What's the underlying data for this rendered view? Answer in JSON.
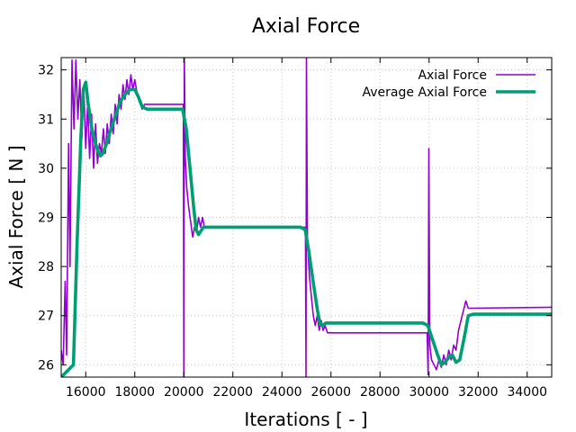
{
  "chart_data": {
    "type": "line",
    "title": "Axial Force",
    "xlabel": "Iterations [ - ]",
    "ylabel": "Axial Force [ N ]",
    "xlim": [
      15000,
      35000
    ],
    "ylim": [
      25.75,
      32.25
    ],
    "x_ticks": [
      16000,
      18000,
      20000,
      22000,
      24000,
      26000,
      28000,
      30000,
      32000,
      34000
    ],
    "y_ticks": [
      26,
      27,
      28,
      29,
      30,
      31,
      32
    ],
    "grid": true,
    "legend_position": "top-right",
    "series": [
      {
        "name": "Axial Force",
        "color": "#9400d3",
        "points": [
          [
            15000,
            26.3
          ],
          [
            15080,
            26.0
          ],
          [
            15160,
            27.7
          ],
          [
            15220,
            26.2
          ],
          [
            15300,
            30.5
          ],
          [
            15360,
            28.0
          ],
          [
            15440,
            32.2
          ],
          [
            15520,
            30.8
          ],
          [
            15600,
            32.2
          ],
          [
            15680,
            31.0
          ],
          [
            15760,
            31.8
          ],
          [
            15840,
            30.6
          ],
          [
            15920,
            31.6
          ],
          [
            16000,
            30.4
          ],
          [
            16080,
            31.3
          ],
          [
            16160,
            30.2
          ],
          [
            16240,
            31.1
          ],
          [
            16320,
            30.0
          ],
          [
            16400,
            30.9
          ],
          [
            16480,
            30.1
          ],
          [
            16560,
            30.5
          ],
          [
            16640,
            30.3
          ],
          [
            16720,
            30.8
          ],
          [
            16800,
            30.3
          ],
          [
            16880,
            30.9
          ],
          [
            16960,
            30.5
          ],
          [
            17040,
            31.1
          ],
          [
            17120,
            30.7
          ],
          [
            17200,
            31.3
          ],
          [
            17280,
            30.9
          ],
          [
            17360,
            31.5
          ],
          [
            17440,
            31.2
          ],
          [
            17520,
            31.7
          ],
          [
            17600,
            31.4
          ],
          [
            17680,
            31.8
          ],
          [
            17760,
            31.5
          ],
          [
            17840,
            31.9
          ],
          [
            17920,
            31.6
          ],
          [
            18000,
            31.8
          ],
          [
            18100,
            31.5
          ],
          [
            18200,
            31.4
          ],
          [
            18300,
            31.2
          ],
          [
            18400,
            31.3
          ],
          [
            19800,
            31.3
          ],
          [
            19980,
            31.3
          ],
          [
            20000,
            25.75
          ],
          [
            20020,
            32.25
          ],
          [
            20060,
            30.2
          ],
          [
            20120,
            29.6
          ],
          [
            20200,
            29.2
          ],
          [
            20280,
            28.9
          ],
          [
            20360,
            28.6
          ],
          [
            20440,
            28.8
          ],
          [
            20520,
            28.7
          ],
          [
            20600,
            29.0
          ],
          [
            20680,
            28.8
          ],
          [
            20760,
            29.0
          ],
          [
            20840,
            28.8
          ],
          [
            21000,
            28.8
          ],
          [
            24900,
            28.8
          ],
          [
            24960,
            28.8
          ],
          [
            24980,
            25.75
          ],
          [
            25000,
            32.25
          ],
          [
            25040,
            28.5
          ],
          [
            25120,
            27.8
          ],
          [
            25200,
            27.4
          ],
          [
            25280,
            27.0
          ],
          [
            25360,
            26.8
          ],
          [
            25440,
            27.0
          ],
          [
            25520,
            26.7
          ],
          [
            25600,
            26.9
          ],
          [
            25680,
            26.7
          ],
          [
            25760,
            26.8
          ],
          [
            25860,
            26.65
          ],
          [
            29800,
            26.65
          ],
          [
            29920,
            26.65
          ],
          [
            29960,
            25.8
          ],
          [
            29990,
            30.4
          ],
          [
            30030,
            26.4
          ],
          [
            30100,
            26.1
          ],
          [
            30200,
            26.0
          ],
          [
            30300,
            25.9
          ],
          [
            30400,
            26.1
          ],
          [
            30500,
            25.95
          ],
          [
            30600,
            26.2
          ],
          [
            30700,
            26.0
          ],
          [
            30800,
            26.3
          ],
          [
            30900,
            26.1
          ],
          [
            31000,
            26.4
          ],
          [
            31100,
            26.3
          ],
          [
            31200,
            26.7
          ],
          [
            31300,
            26.9
          ],
          [
            31400,
            27.1
          ],
          [
            31500,
            27.3
          ],
          [
            31600,
            27.15
          ],
          [
            35000,
            27.17
          ]
        ]
      },
      {
        "name": "Average Axial Force",
        "color": "#009e73",
        "points": [
          [
            15000,
            25.75
          ],
          [
            15500,
            26.0
          ],
          [
            15650,
            28.5
          ],
          [
            15800,
            30.6
          ],
          [
            15900,
            31.6
          ],
          [
            16000,
            31.75
          ],
          [
            16100,
            31.3
          ],
          [
            16250,
            30.8
          ],
          [
            16400,
            30.5
          ],
          [
            16500,
            30.35
          ],
          [
            16600,
            30.25
          ],
          [
            16700,
            30.3
          ],
          [
            16850,
            30.5
          ],
          [
            17000,
            30.75
          ],
          [
            17200,
            31.05
          ],
          [
            17400,
            31.35
          ],
          [
            17600,
            31.5
          ],
          [
            17800,
            31.6
          ],
          [
            18000,
            31.6
          ],
          [
            18150,
            31.45
          ],
          [
            18300,
            31.25
          ],
          [
            18500,
            31.2
          ],
          [
            19950,
            31.2
          ],
          [
            20100,
            30.8
          ],
          [
            20250,
            30.0
          ],
          [
            20400,
            29.2
          ],
          [
            20500,
            28.75
          ],
          [
            20600,
            28.65
          ],
          [
            20800,
            28.8
          ],
          [
            24750,
            28.8
          ],
          [
            24950,
            28.75
          ],
          [
            25100,
            28.3
          ],
          [
            25300,
            27.6
          ],
          [
            25450,
            27.1
          ],
          [
            25550,
            26.85
          ],
          [
            25650,
            26.8
          ],
          [
            25800,
            26.85
          ],
          [
            29750,
            26.85
          ],
          [
            29950,
            26.8
          ],
          [
            30150,
            26.5
          ],
          [
            30350,
            26.2
          ],
          [
            30500,
            26.0
          ],
          [
            30650,
            26.05
          ],
          [
            30800,
            26.15
          ],
          [
            30950,
            26.2
          ],
          [
            31100,
            26.05
          ],
          [
            31250,
            26.1
          ],
          [
            31450,
            26.6
          ],
          [
            31600,
            27.0
          ],
          [
            31800,
            27.03
          ],
          [
            35000,
            27.03
          ]
        ]
      }
    ]
  }
}
